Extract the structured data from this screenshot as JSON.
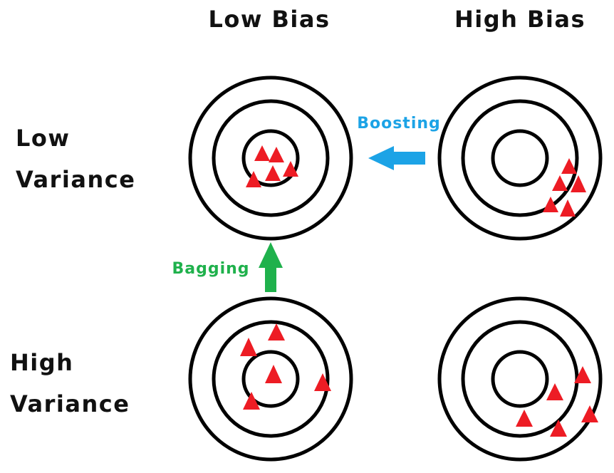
{
  "columns": {
    "low_bias": "Low Bias",
    "high_bias": "High Bias"
  },
  "rows": {
    "low_variance": [
      "Low",
      "Variance"
    ],
    "high_variance": [
      "High",
      "Variance"
    ]
  },
  "arrows": {
    "boosting": {
      "label": "Boosting",
      "color": "#1ca3e6"
    },
    "bagging": {
      "label": "Bagging",
      "color": "#1fb14c"
    }
  },
  "marker_color": "#ed1c24",
  "ring_color": "#000000"
}
